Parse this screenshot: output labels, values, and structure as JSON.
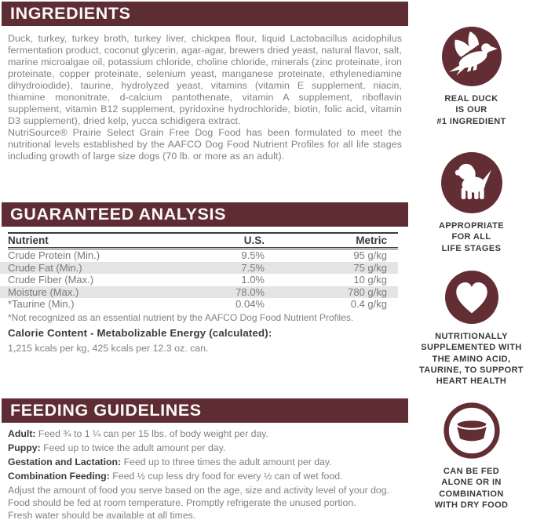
{
  "colors": {
    "maroon": "#5e2d33",
    "icon_maroon": "#632e33",
    "body_text": "#7f8184",
    "dark_text": "#3b3b3d",
    "row_shade": "#e4e4e4"
  },
  "ingredients": {
    "title": "INGREDIENTS",
    "paragraph1": "Duck, turkey, turkey broth, turkey liver, chickpea flour, liquid Lactobacillus acidophilus fermentation product, coconut glycerin, agar-agar, brewers dried yeast, natural flavor, salt, marine microalgae oil, potassium chloride, choline chloride, minerals (zinc proteinate, iron proteinate, copper proteinate, selenium yeast, manganese proteinate, ethylenediamine dihydroiodide), taurine, hydrolyzed yeast, vitamins (vitamin E supplement, niacin, thiamine mononitrate, d-calcium pantothenate, vitamin A supplement, riboflavin supplement, vitamin B12 supplement, pyridoxine hydrochloride, biotin, folic acid, vitamin D3 supplement), dried kelp, yucca schidigera extract.",
    "paragraph2": "NutriSource® Prairie Select Grain Free Dog Food has been formulated to meet the nutritional levels established by the AAFCO Dog Food Nutrient Profiles for all life stages including growth of large size dogs (70 lb. or more as an adult)."
  },
  "analysis": {
    "title": "GUARANTEED ANALYSIS",
    "headers": [
      "Nutrient",
      "U.S.",
      "Metric"
    ],
    "rows": [
      {
        "nutrient": "Crude Protein (Min.)",
        "us": "9.5%",
        "metric": "95 g/kg"
      },
      {
        "nutrient": "Crude Fat (Min.)",
        "us": "7.5%",
        "metric": "75 g/kg"
      },
      {
        "nutrient": "Crude Fiber (Max.)",
        "us": "1.0%",
        "metric": "10 g/kg"
      },
      {
        "nutrient": "Moisture (Max.)",
        "us": "78.0%",
        "metric": "780 g/kg"
      },
      {
        "nutrient": "*Taurine (Min.)",
        "us": "0.04%",
        "metric": "0.4 g/kg"
      }
    ],
    "footnote": "*Not recognized as an essential nutrient by the AAFCO Dog Food Nutrient Profiles.",
    "calorie_heading": "Calorie Content - Metabolizable Energy (calculated):",
    "calorie_value": "1,215 kcals per kg, 425 kcals per 12.3 oz. can."
  },
  "feeding": {
    "title": "FEEDING GUIDELINES",
    "lines": [
      {
        "label": "Adult:",
        "text": " Feed ¾ to 1 ¼ can per 15 lbs. of body weight per day."
      },
      {
        "label": "Puppy:",
        "text": " Feed up to twice the adult amount per day."
      },
      {
        "label": "Gestation and Lactation:",
        "text": " Feed up to three times the adult amount per day."
      },
      {
        "label": "Combination Feeding:",
        "text": " Feed ½ cup less dry food for every ½ can of wet food."
      }
    ],
    "notes": [
      "Adjust the amount of food you serve based on the age, size and activity level of your dog.",
      "Food should be fed at room temperature. Promptly refrigerate the unused portion.",
      "Fresh water should be available at all times."
    ]
  },
  "badges": [
    {
      "icon": "duck-icon",
      "caption_lines": [
        "REAL DUCK",
        "IS OUR",
        "#1 INGREDIENT"
      ]
    },
    {
      "icon": "dog-icon",
      "caption_lines": [
        "APPROPRIATE",
        "FOR ALL",
        "LIFE STAGES"
      ]
    },
    {
      "icon": "heart-icon",
      "caption_lines": [
        "NUTRITIONALLY",
        "SUPPLEMENTED WITH",
        "THE AMINO ACID,",
        "TAURINE, TO SUPPORT",
        "HEART HEALTH"
      ]
    },
    {
      "icon": "bowl-icon",
      "caption_lines": [
        "CAN BE FED",
        "ALONE OR IN",
        "COMBINATION",
        "WITH DRY FOOD"
      ]
    }
  ]
}
